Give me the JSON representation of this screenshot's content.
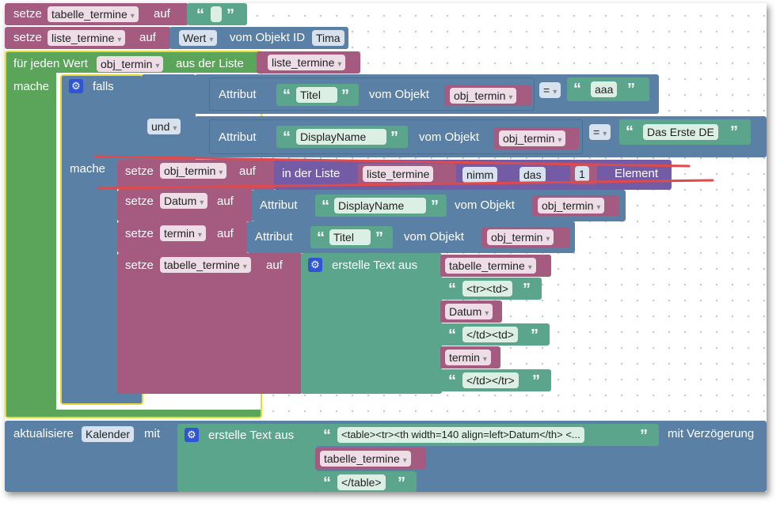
{
  "blocks": {
    "set1": {
      "kw": "setze",
      "var": "tabelle_termine",
      "to": "auf"
    },
    "set2": {
      "kw": "setze",
      "var": "liste_termine",
      "to": "auf",
      "value_dd": "Wert",
      "from_obj": "vom Objekt ID",
      "obj_id": "Tima"
    },
    "loop": {
      "label": "für jeden Wert",
      "var": "obj_termin",
      "from_list": "aus der Liste",
      "list_var": "liste_termine",
      "do": "mache"
    },
    "if": {
      "label": "falls",
      "and": "und",
      "do": "mache"
    },
    "cond1": {
      "attr": "Attribut",
      "attr_name": "Titel",
      "from_obj": "vom Objekt",
      "obj": "obj_termin",
      "op": "=",
      "value": "aaa"
    },
    "cond2": {
      "attr": "Attribut",
      "attr_name": "DisplayName",
      "from_obj": "vom Objekt",
      "obj": "obj_termin",
      "op": "=",
      "value": "Das Erste DE"
    },
    "set_obj": {
      "kw": "setze",
      "var": "obj_termin",
      "to": "auf",
      "in_list": "in der Liste",
      "list_var": "liste_termine",
      "take": "nimm",
      "which": "das",
      "index": "1",
      "element": "Element"
    },
    "set_datum": {
      "kw": "setze",
      "var": "Datum",
      "to": "auf",
      "attr": "Attribut",
      "attr_name": "DisplayName",
      "from_obj": "vom Objekt",
      "obj": "obj_termin"
    },
    "set_termin": {
      "kw": "setze",
      "var": "termin",
      "to": "auf",
      "attr": "Attribut",
      "attr_name": "Titel",
      "from_obj": "vom Objekt",
      "obj": "obj_termin"
    },
    "set_tabelle": {
      "kw": "setze",
      "var": "tabelle_termine",
      "to": "auf",
      "create": "erstelle Text aus",
      "items": [
        "tabelle_termine",
        "<tr><td>",
        "Datum",
        "</td><td>",
        "termin",
        "</td></tr>"
      ]
    },
    "update": {
      "label": "aktualisiere",
      "target": "Kalender",
      "with": "mit",
      "create": "erstelle Text aus",
      "text1": "<table><tr><th width=140 align=left>Datum</th> <...",
      "var": "tabelle_termine",
      "text2": "</table>",
      "delay": "mit Verzögerung"
    }
  },
  "colors": {
    "variables": "#a55b80",
    "text": "#5ba58c",
    "logic": "#5b80a5",
    "lists": "#745ba5",
    "loops": "#5ba55b",
    "strike": "#e04a4a"
  }
}
